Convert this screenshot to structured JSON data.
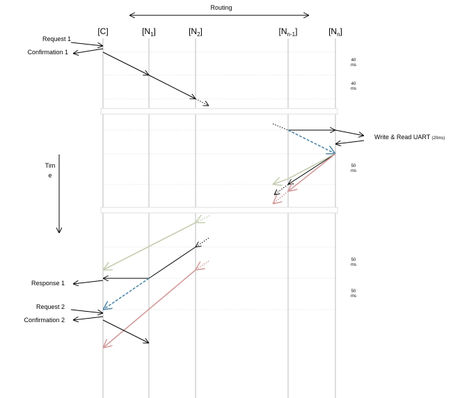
{
  "header": {
    "title": "Routing"
  },
  "nodes": [
    {
      "label": "[C]"
    },
    {
      "label": "[N",
      "sub": "1",
      "close": "]"
    },
    {
      "label": "[N",
      "sub": "2",
      "close": "]"
    },
    {
      "label": "[N",
      "sub": "n-1",
      "close": "]"
    },
    {
      "label": "[N",
      "sub": "n",
      "close": "]"
    }
  ],
  "messages": [
    "Request 1",
    "Confirmation 1",
    "Write & Read UART",
    "(20ms)",
    "Response 1",
    "Request 2",
    "Confirmation 2"
  ],
  "time_axis": {
    "lines": [
      "Tim",
      "e"
    ]
  },
  "durations": [
    {
      "value": "40",
      "unit": "ms"
    },
    {
      "value": "40",
      "unit": "ms"
    },
    {
      "value": "50",
      "unit": "ms"
    },
    {
      "value": "50",
      "unit": "ms"
    },
    {
      "value": "50",
      "unit": "ms"
    }
  ]
}
